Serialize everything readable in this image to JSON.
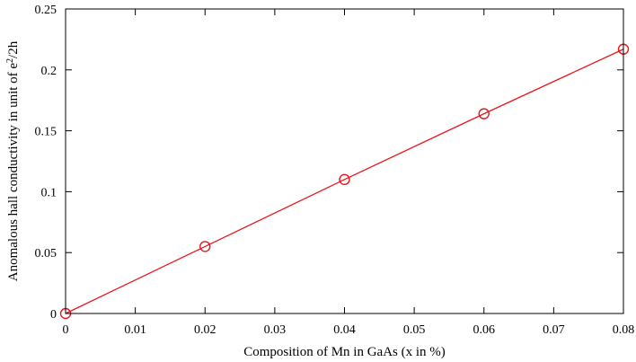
{
  "chart_data": {
    "type": "line",
    "title": "",
    "xlabel": "Composition of Mn in GaAs (x in %)",
    "ylabel": {
      "prefix": "Anomalous hall conductivity in unit of e",
      "superscript": "2",
      "suffix": "/2h"
    },
    "xlim": [
      0,
      0.08
    ],
    "ylim": [
      0,
      0.25
    ],
    "x_ticks": [
      0,
      0.01,
      0.02,
      0.03,
      0.04,
      0.05,
      0.06,
      0.07,
      0.08
    ],
    "x_tick_labels": [
      "0",
      "0.01",
      "0.02",
      "0.03",
      "0.04",
      "0.05",
      "0.06",
      "0.07",
      "0.08"
    ],
    "y_ticks": [
      0,
      0.05,
      0.1,
      0.15,
      0.2,
      0.25
    ],
    "y_tick_labels": [
      "0",
      "0.05",
      "0.1",
      "0.15",
      "0.2",
      "0.25"
    ],
    "grid": false,
    "legend": "none",
    "series": [
      {
        "x": [
          0,
          0.02,
          0.04,
          0.06,
          0.08
        ],
        "y": [
          0,
          0.055,
          0.11,
          0.164,
          0.217
        ],
        "color": "#e8161c",
        "marker": "circle"
      }
    ]
  }
}
